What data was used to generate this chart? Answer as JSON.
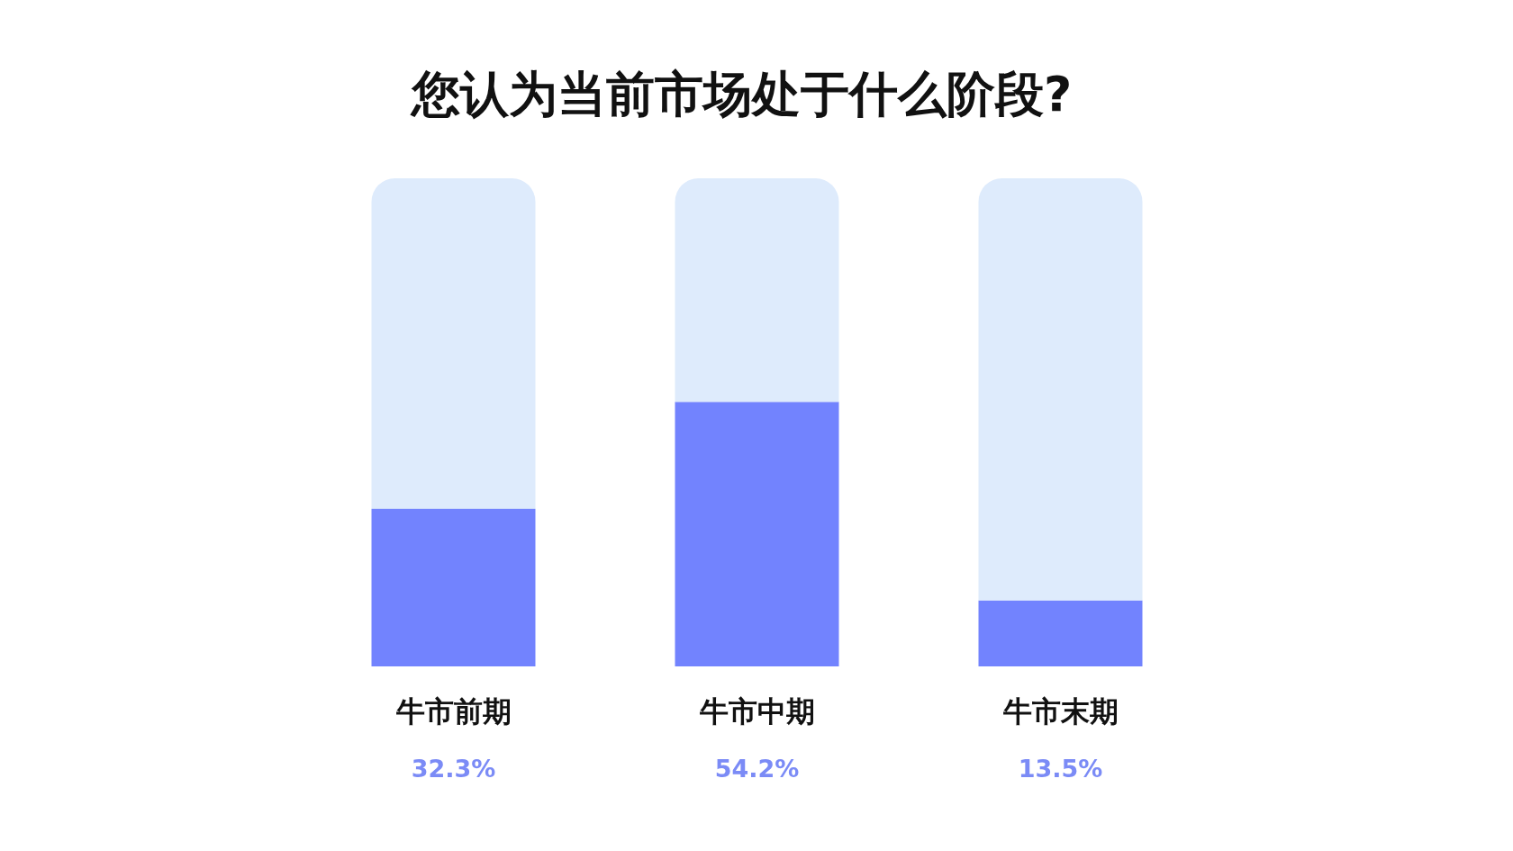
{
  "chart_data": {
    "type": "bar",
    "title": "您认为当前市场处于什么阶段?",
    "categories": [
      "牛市前期",
      "牛市中期",
      "牛市末期"
    ],
    "stacked": true,
    "tick_labels": "x",
    "series": [
      {
        "color": "#7283fe",
        "values": [
          32.3,
          54.2,
          13.5
        ],
        "value_labels": [
          "32.3%",
          "54.2%",
          "13.5%"
        ]
      },
      {
        "color": "#deebfc",
        "values": [
          67.7,
          45.8,
          86.5
        ]
      }
    ]
  }
}
